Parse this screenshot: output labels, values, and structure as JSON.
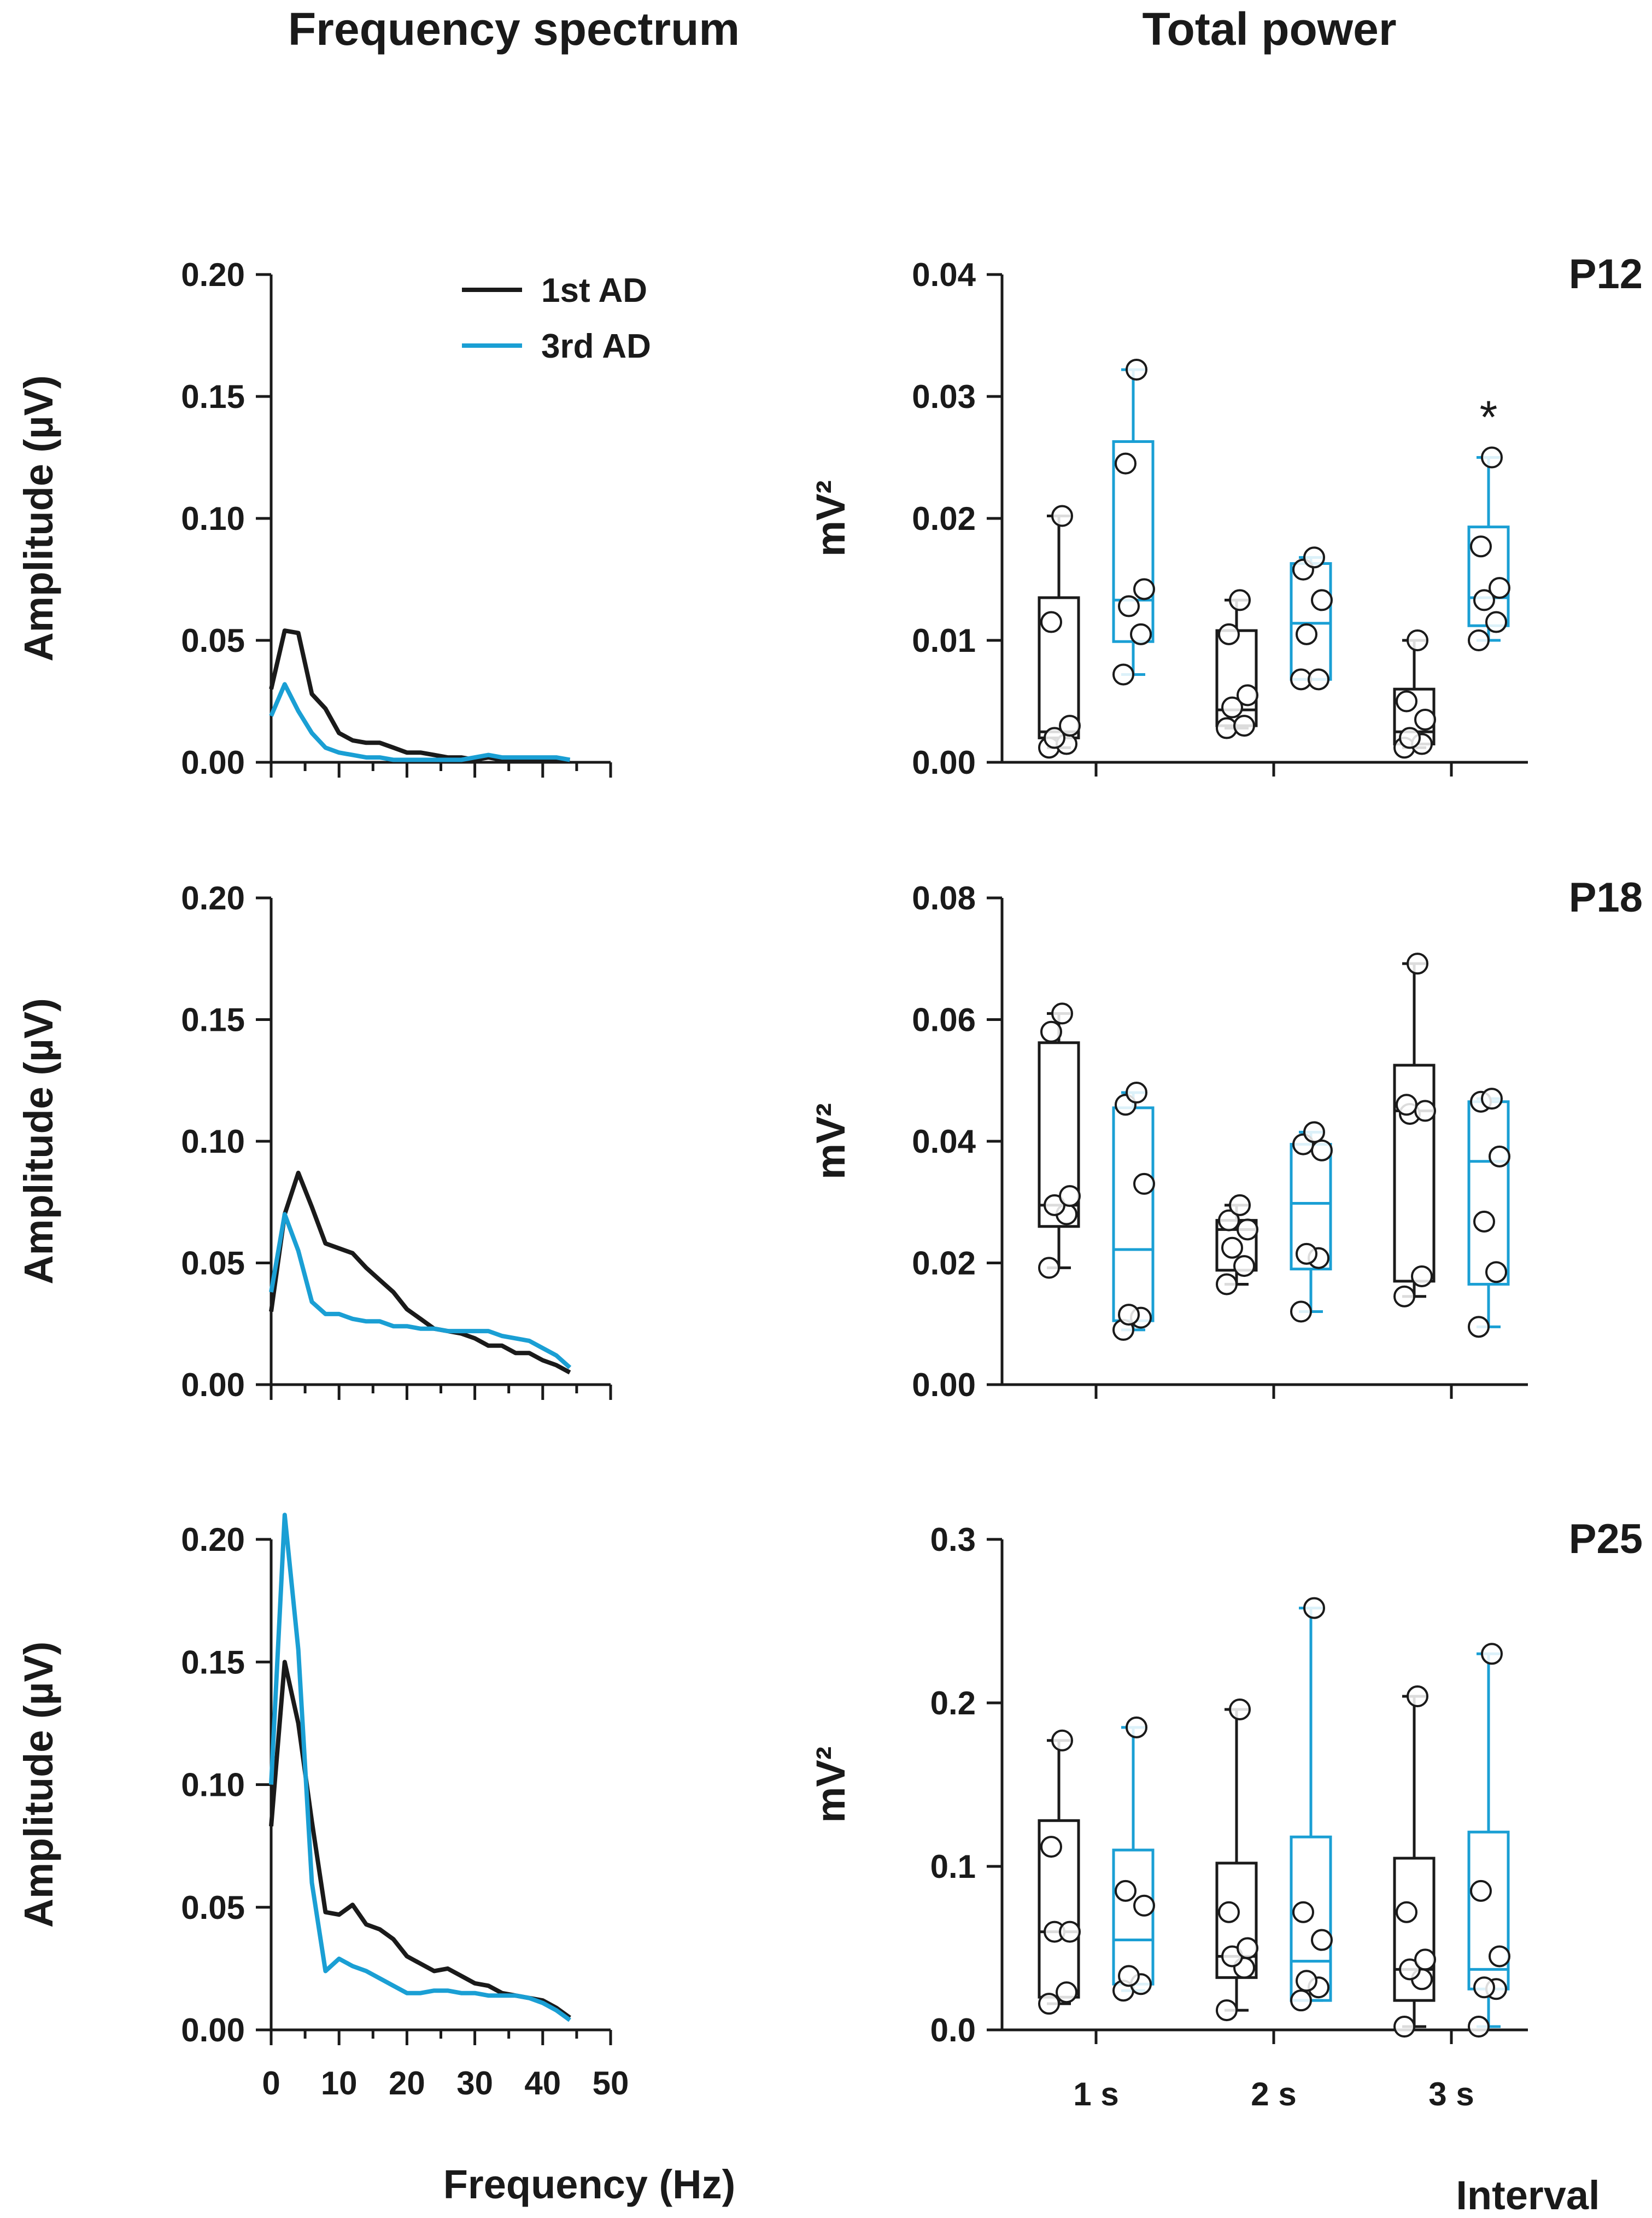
{
  "titles": {
    "left": "Frequency spectrum",
    "right": "Total power"
  },
  "colors": {
    "first": "#1a1a1a",
    "third": "#1a9fd4"
  },
  "legend": {
    "first": "1st AD",
    "third": "3rd AD"
  },
  "chart_data": [
    {
      "type": "line",
      "panel": "P12",
      "xlabel": "Frequency (Hz)",
      "ylabel": "Amplitude (µV)",
      "xlim": [
        0,
        50
      ],
      "ylim": [
        0,
        0.2
      ],
      "yticks": [
        "0.00",
        "0.05",
        "0.10",
        "0.15",
        "0.20"
      ],
      "xticks": [
        "0",
        "10",
        "20",
        "30",
        "40",
        "50"
      ],
      "series": [
        {
          "name": "1st AD",
          "x": [
            0,
            2,
            4,
            6,
            8,
            10,
            12,
            14,
            16,
            18,
            20,
            22,
            24,
            26,
            28,
            30,
            32,
            34,
            36,
            38,
            40,
            42,
            44
          ],
          "values": [
            0.03,
            0.054,
            0.053,
            0.028,
            0.022,
            0.012,
            0.009,
            0.008,
            0.008,
            0.006,
            0.004,
            0.004,
            0.003,
            0.002,
            0.002,
            0.001,
            0.002,
            0.001,
            0.001,
            0.001,
            0.001,
            0.001,
            0.001
          ]
        },
        {
          "name": "3rd AD",
          "x": [
            0,
            2,
            4,
            6,
            8,
            10,
            12,
            14,
            16,
            18,
            20,
            22,
            24,
            26,
            28,
            30,
            32,
            34,
            36,
            38,
            40,
            42,
            44
          ],
          "values": [
            0.019,
            0.032,
            0.021,
            0.012,
            0.006,
            0.004,
            0.003,
            0.002,
            0.002,
            0.001,
            0.001,
            0.001,
            0.001,
            0.001,
            0.001,
            0.002,
            0.003,
            0.002,
            0.002,
            0.002,
            0.002,
            0.002,
            0.001
          ]
        }
      ]
    },
    {
      "type": "line",
      "panel": "P18",
      "xlabel": "Frequency (Hz)",
      "ylabel": "Amplitude (µV)",
      "xlim": [
        0,
        50
      ],
      "ylim": [
        0,
        0.2
      ],
      "yticks": [
        "0.00",
        "0.05",
        "0.10",
        "0.15",
        "0.20"
      ],
      "xticks": [
        "0",
        "10",
        "20",
        "30",
        "40",
        "50"
      ],
      "series": [
        {
          "name": "1st AD",
          "x": [
            0,
            2,
            4,
            6,
            8,
            10,
            12,
            14,
            16,
            18,
            20,
            22,
            24,
            26,
            28,
            30,
            32,
            34,
            36,
            38,
            40,
            42,
            44
          ],
          "values": [
            0.03,
            0.07,
            0.087,
            0.073,
            0.058,
            0.056,
            0.054,
            0.048,
            0.043,
            0.038,
            0.031,
            0.027,
            0.023,
            0.022,
            0.021,
            0.019,
            0.016,
            0.016,
            0.013,
            0.013,
            0.01,
            0.008,
            0.005
          ]
        },
        {
          "name": "3rd AD",
          "x": [
            0,
            2,
            4,
            6,
            8,
            10,
            12,
            14,
            16,
            18,
            20,
            22,
            24,
            26,
            28,
            30,
            32,
            34,
            36,
            38,
            40,
            42,
            44
          ],
          "values": [
            0.038,
            0.07,
            0.055,
            0.034,
            0.029,
            0.029,
            0.027,
            0.026,
            0.026,
            0.024,
            0.024,
            0.023,
            0.023,
            0.022,
            0.022,
            0.022,
            0.022,
            0.02,
            0.019,
            0.018,
            0.015,
            0.012,
            0.007
          ]
        }
      ]
    },
    {
      "type": "line",
      "panel": "P25",
      "xlabel": "Frequency (Hz)",
      "ylabel": "Amplitude (µV)",
      "xlim": [
        0,
        50
      ],
      "ylim": [
        0,
        0.2
      ],
      "yticks": [
        "0.00",
        "0.05",
        "0.10",
        "0.15",
        "0.20"
      ],
      "xticks": [
        "0",
        "10",
        "20",
        "30",
        "40",
        "50"
      ],
      "series": [
        {
          "name": "1st AD",
          "x": [
            0,
            2,
            4,
            6,
            8,
            10,
            12,
            14,
            16,
            18,
            20,
            22,
            24,
            26,
            28,
            30,
            32,
            34,
            36,
            38,
            40,
            42,
            44
          ],
          "values": [
            0.083,
            0.15,
            0.125,
            0.085,
            0.048,
            0.047,
            0.051,
            0.043,
            0.041,
            0.037,
            0.03,
            0.027,
            0.024,
            0.025,
            0.022,
            0.019,
            0.018,
            0.015,
            0.014,
            0.013,
            0.012,
            0.009,
            0.005
          ]
        },
        {
          "name": "3rd AD",
          "x": [
            0,
            2,
            4,
            6,
            8,
            10,
            12,
            14,
            16,
            18,
            20,
            22,
            24,
            26,
            28,
            30,
            32,
            34,
            36,
            38,
            40,
            42,
            44
          ],
          "values": [
            0.1,
            0.21,
            0.155,
            0.06,
            0.024,
            0.029,
            0.026,
            0.024,
            0.021,
            0.018,
            0.015,
            0.015,
            0.016,
            0.016,
            0.015,
            0.015,
            0.014,
            0.014,
            0.014,
            0.013,
            0.011,
            0.008,
            0.004
          ]
        }
      ]
    },
    {
      "type": "box",
      "panel": "P12",
      "ylabel": "mV²",
      "ylim": [
        0,
        0.04
      ],
      "yticks": [
        "0.00",
        "0.01",
        "0.02",
        "0.03",
        "0.04"
      ],
      "categories": [
        "1 s",
        "2 s",
        "3 s"
      ],
      "xlabel": "Interval",
      "series": [
        {
          "name": "1st AD",
          "boxes": [
            {
              "q1": 0.002,
              "median": 0.0025,
              "q3": 0.0135,
              "whisker_low": 0.0012,
              "whisker_high": 0.0202,
              "points": [
                0.0012,
                0.0015,
                0.002,
                0.003,
                0.0115,
                0.0202
              ]
            },
            {
              "q1": 0.003,
              "median": 0.0043,
              "q3": 0.0108,
              "whisker_low": 0.0028,
              "whisker_high": 0.0133,
              "points": [
                0.0028,
                0.003,
                0.0045,
                0.0055,
                0.0105,
                0.0133
              ]
            },
            {
              "q1": 0.0015,
              "median": 0.0025,
              "q3": 0.006,
              "whisker_low": 0.0012,
              "whisker_high": 0.01,
              "points": [
                0.0012,
                0.0015,
                0.002,
                0.0035,
                0.005,
                0.01
              ]
            }
          ]
        },
        {
          "name": "3rd AD",
          "boxes": [
            {
              "q1": 0.0099,
              "median": 0.0133,
              "q3": 0.0263,
              "whisker_low": 0.0072,
              "whisker_high": 0.0322,
              "points": [
                0.0072,
                0.0105,
                0.0128,
                0.0142,
                0.0245,
                0.0322
              ]
            },
            {
              "q1": 0.0068,
              "median": 0.0114,
              "q3": 0.0163,
              "whisker_low": 0.0068,
              "whisker_high": 0.0168,
              "points": [
                0.0068,
                0.0068,
                0.0105,
                0.0133,
                0.0158,
                0.0168
              ]
            },
            {
              "q1": 0.0112,
              "median": 0.0135,
              "q3": 0.0193,
              "whisker_low": 0.01,
              "whisker_high": 0.025,
              "points": [
                0.01,
                0.0115,
                0.0133,
                0.0143,
                0.0177,
                0.025
              ]
            }
          ]
        }
      ],
      "annotations": [
        {
          "text": "*",
          "category": "3 s",
          "series": "3rd AD"
        }
      ]
    },
    {
      "type": "box",
      "panel": "P18",
      "ylabel": "mV²",
      "ylim": [
        0,
        0.08
      ],
      "yticks": [
        "0.00",
        "0.02",
        "0.04",
        "0.06",
        "0.08"
      ],
      "categories": [
        "1 s",
        "2 s",
        "3 s"
      ],
      "xlabel": "Interval",
      "series": [
        {
          "name": "1st AD",
          "boxes": [
            {
              "q1": 0.026,
              "median": 0.0295,
              "q3": 0.0562,
              "whisker_low": 0.0192,
              "whisker_high": 0.061,
              "points": [
                0.0192,
                0.028,
                0.0295,
                0.031,
                0.058,
                0.061
              ]
            },
            {
              "q1": 0.0188,
              "median": 0.0255,
              "q3": 0.027,
              "whisker_low": 0.0165,
              "whisker_high": 0.0295,
              "points": [
                0.0165,
                0.0195,
                0.0225,
                0.0255,
                0.027,
                0.0295
              ]
            },
            {
              "q1": 0.017,
              "median": 0.045,
              "q3": 0.0525,
              "whisker_low": 0.0145,
              "whisker_high": 0.0692,
              "points": [
                0.0145,
                0.0178,
                0.0445,
                0.045,
                0.046,
                0.0692
              ]
            }
          ]
        },
        {
          "name": "3rd AD",
          "boxes": [
            {
              "q1": 0.0105,
              "median": 0.0222,
              "q3": 0.0455,
              "whisker_low": 0.009,
              "whisker_high": 0.048,
              "points": [
                0.009,
                0.011,
                0.0115,
                0.033,
                0.046,
                0.048
              ]
            },
            {
              "q1": 0.019,
              "median": 0.0298,
              "q3": 0.0395,
              "whisker_low": 0.012,
              "whisker_high": 0.0415,
              "points": [
                0.012,
                0.0208,
                0.0215,
                0.0385,
                0.0395,
                0.0415
              ]
            },
            {
              "q1": 0.0165,
              "median": 0.0367,
              "q3": 0.0465,
              "whisker_low": 0.0095,
              "whisker_high": 0.047,
              "points": [
                0.0095,
                0.0185,
                0.0268,
                0.0375,
                0.0465,
                0.047
              ]
            }
          ]
        }
      ]
    },
    {
      "type": "box",
      "panel": "P25",
      "ylabel": "mV²",
      "ylim": [
        0,
        0.3
      ],
      "yticks": [
        "0.0",
        "0.1",
        "0.2",
        "0.3"
      ],
      "categories": [
        "1 s",
        "2 s",
        "3 s"
      ],
      "xlabel": "Interval",
      "series": [
        {
          "name": "1st AD",
          "boxes": [
            {
              "q1": 0.02,
              "median": 0.06,
              "q3": 0.128,
              "whisker_low": 0.016,
              "whisker_high": 0.177,
              "points": [
                0.016,
                0.023,
                0.06,
                0.06,
                0.112,
                0.177
              ]
            },
            {
              "q1": 0.032,
              "median": 0.045,
              "q3": 0.102,
              "whisker_low": 0.012,
              "whisker_high": 0.196,
              "points": [
                0.012,
                0.038,
                0.045,
                0.05,
                0.072,
                0.196
              ]
            },
            {
              "q1": 0.018,
              "median": 0.037,
              "q3": 0.105,
              "whisker_low": 0.002,
              "whisker_high": 0.204,
              "points": [
                0.002,
                0.031,
                0.037,
                0.043,
                0.072,
                0.204
              ]
            }
          ]
        },
        {
          "name": "3rd AD",
          "boxes": [
            {
              "q1": 0.028,
              "median": 0.055,
              "q3": 0.11,
              "whisker_low": 0.024,
              "whisker_high": 0.185,
              "points": [
                0.024,
                0.028,
                0.033,
                0.076,
                0.085,
                0.185
              ]
            },
            {
              "q1": 0.018,
              "median": 0.042,
              "q3": 0.118,
              "whisker_low": 0.018,
              "whisker_high": 0.258,
              "points": [
                0.018,
                0.026,
                0.03,
                0.055,
                0.072,
                0.258
              ]
            },
            {
              "q1": 0.025,
              "median": 0.037,
              "q3": 0.121,
              "whisker_low": 0.002,
              "whisker_high": 0.23,
              "points": [
                0.002,
                0.025,
                0.026,
                0.045,
                0.085,
                0.23
              ]
            }
          ]
        }
      ]
    }
  ]
}
